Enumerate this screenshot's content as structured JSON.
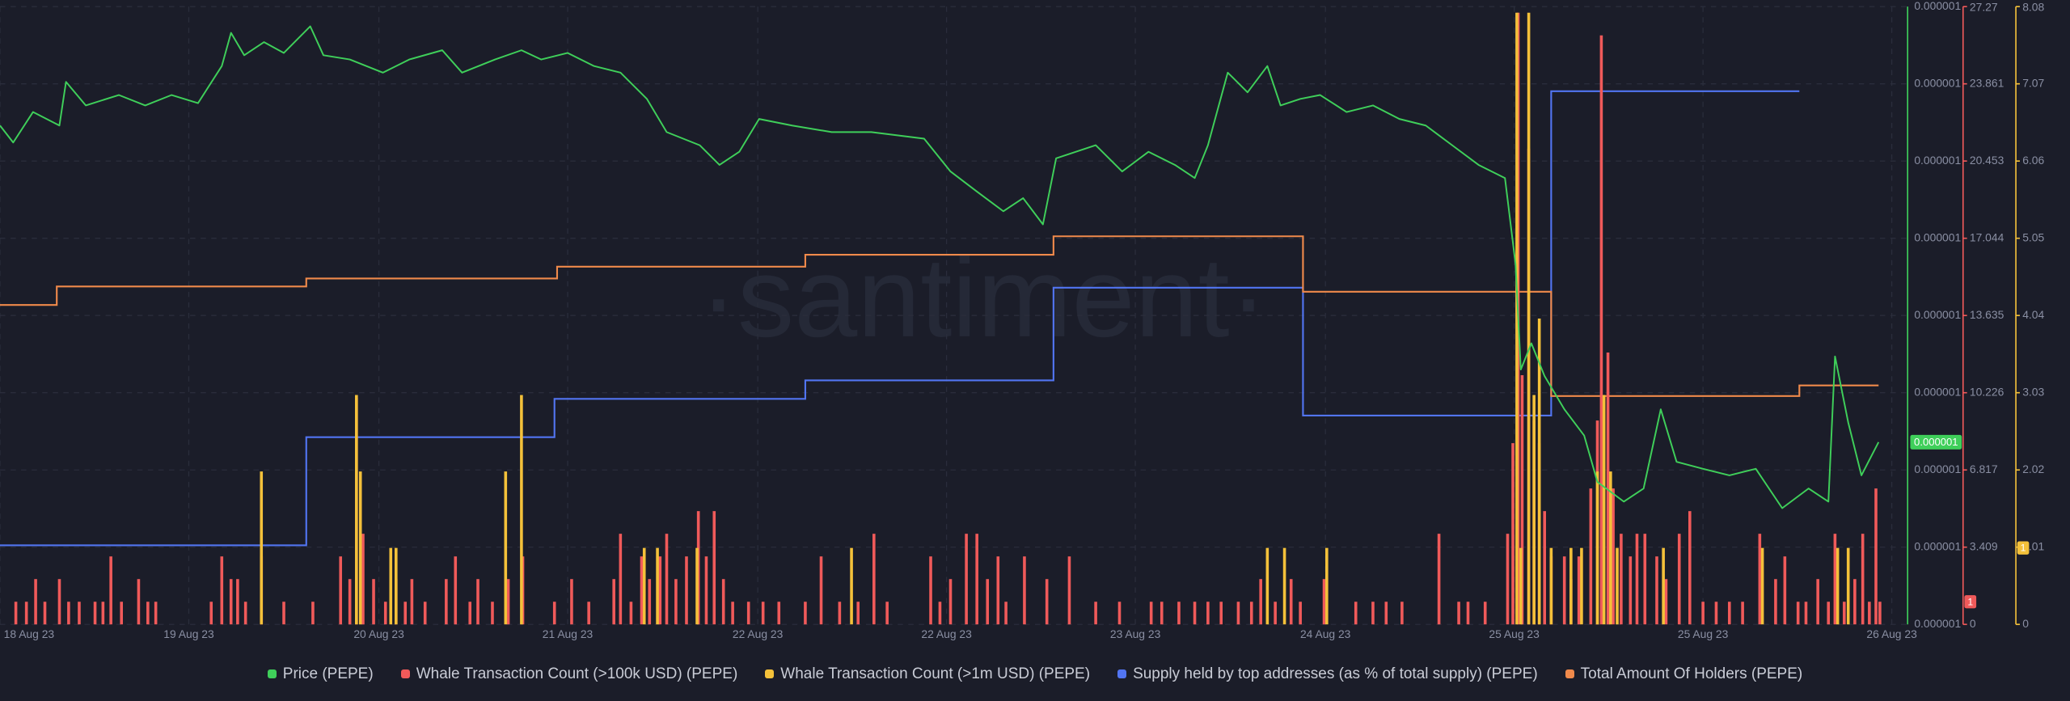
{
  "chart_data": {
    "type": "combo",
    "watermark": "·santiment·",
    "grid": true,
    "xlim": [
      0,
      1445
    ],
    "xticks": [
      {
        "value": 0,
        "label": "18 Aug 23"
      },
      {
        "value": 143,
        "label": "19 Aug 23"
      },
      {
        "value": 287,
        "label": "20 Aug 23"
      },
      {
        "value": 430,
        "label": "21 Aug 23"
      },
      {
        "value": 574,
        "label": "22 Aug 23"
      },
      {
        "value": 717,
        "label": "22 Aug 23"
      },
      {
        "value": 860,
        "label": "23 Aug 23"
      },
      {
        "value": 1004,
        "label": "24 Aug 23"
      },
      {
        "value": 1147,
        "label": "25 Aug 23"
      },
      {
        "value": 1290,
        "label": "25 Aug 23"
      },
      {
        "value": 1433,
        "label": "26 Aug 23"
      }
    ],
    "ylim": [
      9.2e-07,
      1.08e-06
    ],
    "yticks": [
      {
        "value": 9.2e-07,
        "label": "0.000001"
      },
      {
        "value": 9.4e-07,
        "label": "0.000001"
      },
      {
        "value": 9.6e-07,
        "label": "0.000001"
      },
      {
        "value": 9.8e-07,
        "label": "0.000001"
      },
      {
        "value": 1e-06,
        "label": "0.000001"
      },
      {
        "value": 1.02e-06,
        "label": "0.000001"
      },
      {
        "value": 1.04e-06,
        "label": "0.000001"
      },
      {
        "value": 1.06e-06,
        "label": "0.000001"
      },
      {
        "value": 1.08e-06,
        "label": "0.000001"
      }
    ],
    "y2lim": [
      0,
      27.27
    ],
    "y2ticks": [
      0,
      3.409,
      6.817,
      10.226,
      13.635,
      17.044,
      20.453,
      23.861,
      27.27
    ],
    "y3lim": [
      0,
      8.08
    ],
    "y3ticks": [
      0,
      1.01,
      2.02,
      3.03,
      4.04,
      5.05,
      6.06,
      7.07,
      8.08
    ],
    "series": [
      {
        "name": "Price (PEPE)",
        "type": "line",
        "axis": "y",
        "color": "#3fcf5a",
        "current_label": "0.000001",
        "x": [
          0,
          10,
          25,
          45,
          50,
          65,
          90,
          110,
          130,
          150,
          168,
          175,
          185,
          200,
          215,
          235,
          245,
          265,
          290,
          310,
          335,
          350,
          375,
          395,
          410,
          430,
          450,
          470,
          490,
          505,
          530,
          545,
          560,
          575,
          600,
          630,
          660,
          700,
          720,
          740,
          760,
          775,
          790,
          800,
          830,
          850,
          870,
          890,
          905,
          915,
          930,
          945,
          960,
          970,
          985,
          1000,
          1020,
          1040,
          1060,
          1080,
          1100,
          1120,
          1140,
          1148,
          1152,
          1160,
          1170,
          1185,
          1200,
          1210,
          1230,
          1245,
          1258,
          1270,
          1290,
          1310,
          1330,
          1350,
          1370,
          1385,
          1390,
          1400,
          1410,
          1423
        ],
        "values": [
          1.0492e-06,
          1.0448e-06,
          1.0527e-06,
          1.0492e-06,
          1.0605e-06,
          1.0544e-06,
          1.0571e-06,
          1.0544e-06,
          1.0571e-06,
          1.055e-06,
          1.0646e-06,
          1.0732e-06,
          1.0674e-06,
          1.0708e-06,
          1.068e-06,
          1.0749e-06,
          1.0674e-06,
          1.0663e-06,
          1.0629e-06,
          1.0663e-06,
          1.0687e-06,
          1.0629e-06,
          1.0663e-06,
          1.0687e-06,
          1.0663e-06,
          1.068e-06,
          1.0646e-06,
          1.0629e-06,
          1.0561e-06,
          1.0475e-06,
          1.0441e-06,
          1.039e-06,
          1.0424e-06,
          1.0509e-06,
          1.0492e-06,
          1.0475e-06,
          1.0475e-06,
          1.0458e-06,
          1.0373e-06,
          1.0321e-06,
          1.027e-06,
          1.0304e-06,
          1.0236e-06,
          1.0407e-06,
          1.0441e-06,
          1.0373e-06,
          1.0424e-06,
          1.039e-06,
          1.0356e-06,
          1.0441e-06,
          1.0629e-06,
          1.0578e-06,
          1.0646e-06,
          1.0544e-06,
          1.0561e-06,
          1.0571e-06,
          1.0527e-06,
          1.0544e-06,
          1.0509e-06,
          1.0492e-06,
          1.0441e-06,
          1.039e-06,
          1.0356e-06,
          1.0133e-06,
          9.86e-07,
          9.928e-07,
          9.843e-07,
          9.757e-07,
          9.689e-07,
          9.569e-07,
          9.518e-07,
          9.552e-07,
          9.757e-07,
          9.621e-07,
          9.603e-07,
          9.586e-07,
          9.603e-07,
          9.501e-07,
          9.552e-07,
          9.518e-07,
          9.894e-07,
          9.723e-07,
          9.586e-07,
          9.672e-07
        ]
      },
      {
        "name": "Whale Transaction Count (>100k USD) (PEPE)",
        "type": "bar",
        "axis": "y2",
        "color": "#f05a5a",
        "x": [
          12,
          20,
          27,
          34,
          45,
          52,
          60,
          72,
          78,
          84,
          92,
          105,
          112,
          118,
          160,
          168,
          175,
          180,
          186,
          198,
          215,
          237,
          258,
          265,
          270,
          275,
          283,
          292,
          300,
          307,
          312,
          322,
          338,
          345,
          356,
          362,
          373,
          385,
          396,
          420,
          433,
          446,
          465,
          470,
          478,
          486,
          492,
          500,
          505,
          512,
          520,
          529,
          535,
          541,
          548,
          555,
          567,
          578,
          590,
          610,
          622,
          636,
          650,
          662,
          672,
          705,
          712,
          720,
          732,
          740,
          748,
          756,
          762,
          776,
          793,
          810,
          830,
          848,
          872,
          880,
          893,
          905,
          915,
          925,
          938,
          948,
          955,
          966,
          978,
          985,
          1003,
          1027,
          1040,
          1050,
          1062,
          1090,
          1105,
          1112,
          1125,
          1142,
          1146,
          1150,
          1153,
          1158,
          1162,
          1166,
          1170,
          1175,
          1185,
          1190,
          1196,
          1205,
          1210,
          1213,
          1218,
          1222,
          1228,
          1235,
          1240,
          1246,
          1255,
          1262,
          1272,
          1280,
          1290,
          1300,
          1310,
          1320,
          1333,
          1345,
          1352,
          1362,
          1368,
          1377,
          1385,
          1390,
          1397,
          1405,
          1411,
          1416,
          1421,
          1424
        ],
        "values": [
          1,
          1,
          2,
          1,
          2,
          1,
          1,
          1,
          1,
          3,
          1,
          2,
          1,
          1,
          1,
          3,
          2,
          2,
          1,
          3,
          1,
          1,
          3,
          2,
          10,
          4,
          2,
          1,
          2,
          1,
          2,
          1,
          2,
          3,
          1,
          2,
          1,
          2,
          3,
          1,
          2,
          1,
          2,
          4,
          1,
          3,
          2,
          3,
          4,
          2,
          3,
          5,
          3,
          5,
          2,
          1,
          1,
          1,
          1,
          1,
          3,
          1,
          1,
          4,
          1,
          3,
          1,
          2,
          4,
          4,
          2,
          3,
          1,
          3,
          2,
          3,
          1,
          1,
          1,
          1,
          1,
          1,
          1,
          1,
          1,
          1,
          2,
          1,
          2,
          1,
          2,
          1,
          1,
          1,
          1,
          4,
          1,
          1,
          1,
          4,
          8,
          27,
          11,
          21,
          9,
          8,
          5,
          3,
          3,
          2,
          3,
          6,
          9,
          26,
          12,
          6,
          4,
          3,
          4,
          4,
          3,
          2,
          4,
          5,
          1,
          1,
          1,
          1,
          4,
          2,
          3,
          1,
          1,
          2,
          1,
          4,
          1,
          2,
          4,
          1,
          6,
          1
        ]
      },
      {
        "name": "Whale Transaction Count (>1m USD) (PEPE)",
        "type": "bar",
        "axis": "y3",
        "color": "#f4c13a",
        "x": [
          198,
          270,
          273,
          296,
          300,
          383,
          395,
          488,
          498,
          528,
          645,
          960,
          973,
          1005,
          1149,
          1152,
          1158,
          1162,
          1166,
          1175,
          1190,
          1198,
          1210,
          1215,
          1220,
          1225,
          1260,
          1335,
          1392,
          1400
        ],
        "values": [
          2,
          3,
          2,
          1,
          1,
          2,
          3,
          1,
          1,
          1,
          1,
          1,
          1,
          1,
          8,
          1,
          8,
          3,
          4,
          1,
          1,
          1,
          2,
          3,
          2,
          1,
          1,
          1,
          1,
          1
        ]
      },
      {
        "name": "Supply held by top addresses (as % of total supply) (PEPE)",
        "type": "step",
        "color": "#5275f2",
        "ylim": [
          40,
          50
        ],
        "x": [
          0,
          232,
          420,
          610,
          798,
          987,
          1175,
          1363
        ],
        "values": [
          41.28,
          43.03,
          43.65,
          43.95,
          45.45,
          43.38,
          48.63,
          48.63
        ]
      },
      {
        "name": "Total Amount Of Holders (PEPE)",
        "type": "step",
        "color": "#f08a4b",
        "ylim": [
          140000,
          160000
        ],
        "x": [
          0,
          43,
          232,
          422,
          610,
          798,
          987,
          1175,
          1363,
          1423
        ],
        "values": [
          150342,
          150940,
          151197,
          151581,
          151966,
          152564,
          150769,
          147393,
          147735,
          147735
        ]
      }
    ]
  }
}
